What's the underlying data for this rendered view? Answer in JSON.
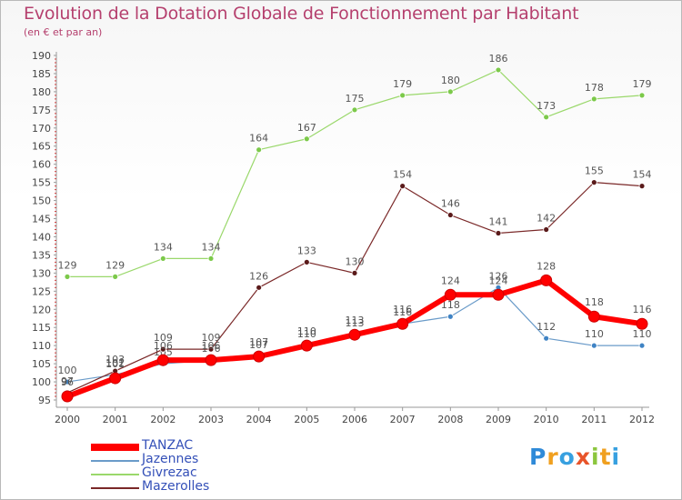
{
  "title": "Evolution de la Dotation Globale de Fonctionnement par Habitant",
  "subtitle": "(en € et par an)",
  "chart_data": {
    "type": "line",
    "title": "Evolution de la Dotation Globale de Fonctionnement par Habitant",
    "subtitle": "(en € et par an)",
    "xlabel": "",
    "ylabel": "",
    "x": [
      "2000",
      "2001",
      "2002",
      "2003",
      "2004",
      "2005",
      "2006",
      "2007",
      "2008",
      "2009",
      "2010",
      "2011",
      "2012"
    ],
    "ylim": [
      95,
      190
    ],
    "yticks": [
      95,
      100,
      105,
      110,
      115,
      120,
      125,
      130,
      135,
      140,
      145,
      150,
      155,
      160,
      165,
      170,
      175,
      180,
      185,
      190
    ],
    "grid": false,
    "legend_position": "bottom-left",
    "series": [
      {
        "name": "Jazennes",
        "color": "#6a9bc9",
        "dot": "#3f83c4",
        "values": [
          100,
          102,
          105,
          106,
          107,
          110,
          113,
          116,
          118,
          126,
          112,
          110,
          110
        ]
      },
      {
        "name": "Givrezac",
        "color": "#9ad86b",
        "dot": "#7cc94a",
        "values": [
          129,
          129,
          134,
          134,
          164,
          167,
          175,
          179,
          180,
          186,
          173,
          178,
          179
        ]
      },
      {
        "name": "Mazerolles",
        "color": "#7a2828",
        "dot": "#5a1a1a",
        "values": [
          97,
          103,
          109,
          109,
          126,
          133,
          130,
          154,
          146,
          141,
          142,
          155,
          154
        ]
      },
      {
        "name": "TANZAC",
        "color": "#ff0000",
        "dot": "#ff0000",
        "values": [
          96,
          101,
          106,
          106,
          107,
          110,
          113,
          116,
          124,
          124,
          128,
          118,
          116
        ]
      }
    ]
  },
  "legend": [
    {
      "label": "TANZAC",
      "color": "#ff0000"
    },
    {
      "label": "Jazennes",
      "color": "#6a9bc9"
    },
    {
      "label": "Givrezac",
      "color": "#9ad86b"
    },
    {
      "label": "Mazerolles",
      "color": "#7a2828"
    }
  ],
  "logo": {
    "text": "Proxiti",
    "letters": [
      {
        "ch": "P",
        "color": "#2f8ad8"
      },
      {
        "ch": "r",
        "color": "#f0a020"
      },
      {
        "ch": "o",
        "color": "#37a0e0"
      },
      {
        "ch": "x",
        "color": "#e8542a"
      },
      {
        "ch": "i",
        "color": "#8cc63e"
      },
      {
        "ch": "t",
        "color": "#f0a020"
      },
      {
        "ch": "i",
        "color": "#37a0e0"
      }
    ]
  }
}
